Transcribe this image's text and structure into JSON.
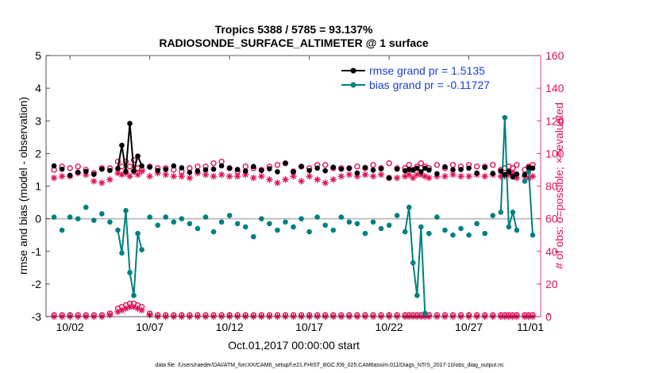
{
  "chart_data": {
    "type": "line",
    "title_line1": "Tropics 5388 / 5785 = 93.137%",
    "title_line2": "RADIOSONDE_SURFACE_ALTIMETER @ 1 surface",
    "ylabel_left": "rmse and bias (model - observation)",
    "ylabel_right": "# of obs: o=possible; ×=evaluated",
    "xlabel": "Oct.01,2017 00:00:00 start",
    "footer": "data file: /Users/raeder/DAI/ATM_forcXX/CAM6_setup/f.e21.FHIST_BGC.f09_025.CAM6assim.011/Diags_NTrS_2017-10/obs_diag_output.nc",
    "ylim_left": [
      -3,
      5
    ],
    "ylim_right": [
      0,
      160
    ],
    "xlim": [
      0.5,
      31.5
    ],
    "yticks_left": [
      "-3",
      "-2",
      "-1",
      "0",
      "1",
      "2",
      "3",
      "4",
      "5"
    ],
    "yticks_right": [
      "0",
      "20",
      "40",
      "60",
      "80",
      "100",
      "120",
      "140",
      "160"
    ],
    "xticks": [
      {
        "x": 2,
        "label": "10/02"
      },
      {
        "x": 7,
        "label": "10/07"
      },
      {
        "x": 12,
        "label": "10/12"
      },
      {
        "x": 17,
        "label": "10/17"
      },
      {
        "x": 22,
        "label": "10/22"
      },
      {
        "x": 27,
        "label": "10/27"
      },
      {
        "x": 32,
        "label": "11/01"
      }
    ],
    "legend": [
      {
        "name": "rmse",
        "label": "rmse grand pr = 1.5135",
        "color": "#000000"
      },
      {
        "name": "bias",
        "label": "bias grand pr = -0.11727",
        "color": "#008080"
      }
    ],
    "colors": {
      "rmse": "#000000",
      "bias": "#008080",
      "obs": "#e0105a",
      "zero": "#b0b0b0",
      "legend_text": "#1a3fcc"
    },
    "x": [
      1.0,
      1.5,
      2.0,
      2.5,
      3.0,
      3.5,
      4.0,
      4.5,
      5.0,
      5.25,
      5.5,
      5.75,
      6.0,
      6.25,
      6.5,
      7.0,
      7.5,
      8.0,
      8.5,
      9.0,
      9.5,
      10.0,
      10.5,
      11.0,
      11.5,
      12.0,
      12.5,
      13.0,
      13.5,
      14.0,
      14.5,
      15.0,
      15.5,
      16.0,
      16.5,
      17.0,
      17.5,
      18.0,
      18.5,
      19.0,
      19.5,
      20.0,
      20.5,
      21.0,
      21.5,
      22.0,
      22.5,
      23.0,
      23.25,
      23.5,
      23.75,
      24.0,
      24.25,
      24.5,
      25.0,
      25.5,
      26.0,
      26.5,
      27.0,
      27.5,
      28.0,
      28.5,
      29.0,
      29.25,
      29.5,
      29.75,
      30.0,
      30.5,
      30.75,
      31.0
    ],
    "series": [
      {
        "name": "rmse",
        "values": [
          1.62,
          1.52,
          1.33,
          1.42,
          1.45,
          1.36,
          1.52,
          1.48,
          1.54,
          2.25,
          1.45,
          2.92,
          1.46,
          1.92,
          1.62,
          1.58,
          1.48,
          1.51,
          1.62,
          1.56,
          1.42,
          1.46,
          1.5,
          1.52,
          1.62,
          1.55,
          1.51,
          1.46,
          1.6,
          1.48,
          1.53,
          1.44,
          1.7,
          1.44,
          1.6,
          1.48,
          1.55,
          1.47,
          1.58,
          1.52,
          1.54,
          1.4,
          1.57,
          1.49,
          1.53,
          1.25,
          1.52,
          1.47,
          1.51,
          1.49,
          1.55,
          1.44,
          1.55,
          1.49,
          1.38,
          1.59,
          1.5,
          1.51,
          1.55,
          1.4,
          1.57,
          1.39,
          1.46,
          1.35,
          1.44,
          1.28,
          1.37,
          1.35,
          1.57,
          1.55
        ],
        "connected": [
          false,
          false,
          false,
          false,
          false,
          false,
          false,
          false,
          true,
          true,
          true,
          true,
          true,
          true,
          true,
          false,
          false,
          false,
          false,
          false,
          false,
          false,
          false,
          false,
          false,
          false,
          false,
          false,
          false,
          false,
          false,
          false,
          false,
          false,
          false,
          false,
          false,
          false,
          false,
          false,
          false,
          false,
          false,
          false,
          false,
          false,
          false,
          true,
          true,
          true,
          true,
          true,
          true,
          false,
          false,
          false,
          false,
          false,
          false,
          false,
          false,
          false,
          true,
          true,
          true,
          true,
          true,
          false,
          true,
          true
        ]
      },
      {
        "name": "bias",
        "values": [
          0.05,
          -0.35,
          0.05,
          0.0,
          0.35,
          -0.05,
          0.15,
          -0.1,
          -0.35,
          -1.05,
          0.25,
          -1.65,
          -2.35,
          -0.45,
          -0.95,
          0.05,
          -0.2,
          0.05,
          -0.1,
          0.0,
          -0.15,
          -0.3,
          0.05,
          -0.4,
          -0.1,
          0.1,
          -0.15,
          -0.25,
          -0.55,
          0.0,
          -0.15,
          -0.35,
          -0.1,
          -0.25,
          0.0,
          -0.4,
          0.05,
          -0.2,
          -0.35,
          0.05,
          -0.1,
          -0.15,
          -0.45,
          -0.1,
          -0.3,
          -0.2,
          0.1,
          -0.4,
          0.35,
          -1.35,
          -2.35,
          -0.25,
          -2.9,
          -0.45,
          0.05,
          -0.35,
          -0.5,
          -0.3,
          -0.5,
          -0.15,
          -0.45,
          0.1,
          0.2,
          3.1,
          -0.25,
          0.2,
          -0.35,
          1.15,
          1.45,
          -0.5
        ],
        "connected": [
          false,
          false,
          false,
          false,
          false,
          false,
          false,
          false,
          true,
          true,
          true,
          true,
          true,
          true,
          true,
          false,
          false,
          false,
          false,
          false,
          false,
          false,
          false,
          false,
          false,
          false,
          false,
          false,
          false,
          false,
          false,
          false,
          false,
          false,
          false,
          false,
          false,
          false,
          false,
          false,
          false,
          false,
          false,
          false,
          false,
          false,
          false,
          true,
          true,
          true,
          true,
          true,
          true,
          false,
          false,
          false,
          false,
          false,
          false,
          false,
          false,
          false,
          true,
          true,
          true,
          true,
          true,
          false,
          true,
          true
        ]
      },
      {
        "name": "obs_possible",
        "axis": "right",
        "values": [
          90,
          92,
          91,
          92,
          90,
          88,
          91,
          91,
          95,
          92,
          95,
          92,
          96,
          91,
          90,
          92,
          91,
          91,
          90,
          89,
          91,
          92,
          92,
          94,
          95,
          91,
          89,
          92,
          91,
          90,
          92,
          93,
          94,
          89,
          92,
          91,
          93,
          93,
          91,
          91,
          91,
          92,
          91,
          93,
          91,
          94,
          91,
          91,
          93,
          90,
          92,
          94,
          92,
          91,
          93,
          91,
          93,
          92,
          93,
          92,
          92,
          93,
          90,
          91,
          92,
          91,
          93,
          90,
          92,
          93
        ]
      },
      {
        "name": "obs_evaluated",
        "axis": "right",
        "values": [
          85,
          86,
          86,
          88,
          87,
          83,
          82,
          84,
          88,
          87,
          88,
          86,
          89,
          87,
          89,
          86,
          88,
          87,
          86,
          86,
          85,
          88,
          87,
          86,
          87,
          86,
          86,
          87,
          85,
          86,
          84,
          82,
          84,
          86,
          83,
          86,
          84,
          82,
          84,
          86,
          87,
          86,
          87,
          86,
          87,
          85,
          85,
          86,
          87,
          85,
          87,
          87,
          86,
          85,
          86,
          86,
          87,
          86,
          86,
          87,
          86,
          87,
          86,
          86,
          87,
          88,
          85,
          86,
          85,
          86
        ]
      },
      {
        "name": "bottom_possible",
        "axis": "right",
        "values": [
          1,
          1,
          1,
          1,
          1,
          1,
          1,
          2,
          5,
          6,
          7,
          8,
          8,
          7,
          6,
          2,
          1,
          1,
          1,
          1,
          1,
          1,
          1,
          1,
          1,
          1,
          1,
          1,
          1,
          1,
          1,
          1,
          1,
          1,
          1,
          1,
          1,
          1,
          1,
          1,
          1,
          1,
          1,
          1,
          1,
          1,
          1,
          1,
          1,
          1,
          1,
          1,
          1,
          1,
          1,
          1,
          1,
          1,
          1,
          1,
          1,
          1,
          1,
          1,
          1,
          1,
          1,
          1,
          1,
          1
        ]
      },
      {
        "name": "bottom_evaluated",
        "axis": "right",
        "values": [
          0,
          0,
          0,
          0,
          0,
          0,
          0,
          1,
          3,
          4,
          5,
          6,
          6,
          5,
          4,
          1,
          0,
          0,
          0,
          0,
          0,
          0,
          0,
          0,
          0,
          0,
          0,
          0,
          0,
          0,
          0,
          0,
          0,
          0,
          0,
          0,
          0,
          0,
          0,
          0,
          0,
          0,
          0,
          0,
          0,
          0,
          0,
          0,
          0,
          0,
          0,
          0,
          0,
          0,
          0,
          0,
          0,
          0,
          0,
          0,
          0,
          0,
          0,
          0,
          0,
          0,
          0,
          0,
          0,
          0
        ]
      }
    ]
  }
}
